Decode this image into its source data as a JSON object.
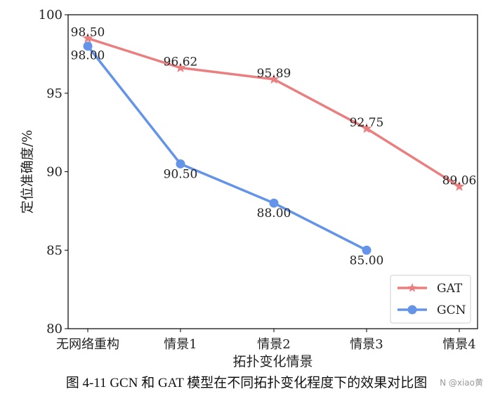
{
  "chart_data": {
    "type": "line",
    "categories": [
      "无网络重构",
      "情景1",
      "情景2",
      "情景3",
      "情景4"
    ],
    "series": [
      {
        "name": "GAT",
        "values": [
          98.5,
          96.62,
          95.89,
          92.75,
          89.06
        ],
        "labels": [
          "98.50",
          "96.62",
          "95.89",
          "92.75",
          "89.06"
        ],
        "color": "#ea7f80",
        "marker": "star"
      },
      {
        "name": "GCN",
        "values": [
          98.0,
          90.5,
          88.0,
          85.0,
          null
        ],
        "labels": [
          "98.00",
          "90.50",
          "88.00",
          "85.00",
          null
        ],
        "color": "#6494ea",
        "marker": "circle"
      }
    ],
    "ylim": [
      80,
      100
    ],
    "yticks": [
      80,
      85,
      90,
      95,
      100
    ],
    "ytick_labels": [
      "80",
      "85",
      "90",
      "95",
      "100"
    ],
    "xlabel": "拓扑变化情景",
    "ylabel": "定位准确度/%",
    "legend": "lower-right",
    "grid": false
  },
  "caption": "图 4-11 GCN 和 GAT 模型在不同拓扑变化程度下的效果对比图",
  "watermark": "N @xiao黄"
}
